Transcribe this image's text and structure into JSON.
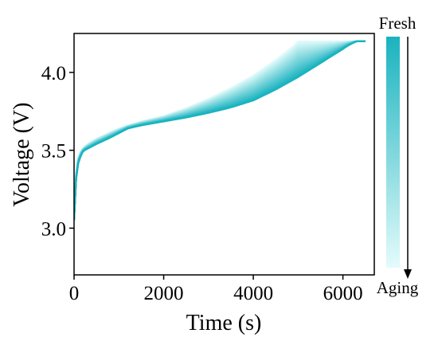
{
  "chart_data": {
    "type": "line",
    "xlabel": "Time (s)",
    "ylabel": "Voltage (V)",
    "xlim": [
      0,
      6700
    ],
    "ylim": [
      2.7,
      4.25
    ],
    "xticks": [
      0,
      2000,
      4000,
      6000
    ],
    "yticks": [
      3.0,
      3.5,
      4.0
    ],
    "xtick_labels": [
      "0",
      "2000",
      "4000",
      "6000"
    ],
    "ytick_labels": [
      "3.0",
      "3.5",
      "4.0"
    ],
    "grid": false,
    "colorbar": {
      "top_label": "Fresh",
      "bottom_label": "Aging",
      "color_fresh": "#1ab3bf",
      "color_aged": "#e4fbfb",
      "arrow_direction": "down"
    },
    "series_family": {
      "count": 30,
      "note_visible": "curves shift from fresh (darkest) to aged (lightest)",
      "fresh_curve": {
        "x": [
          0,
          30,
          100,
          200,
          300,
          500,
          800,
          1000,
          1200,
          1500,
          2000,
          2500,
          3000,
          3500,
          4000,
          4500,
          5000,
          5500,
          6000,
          6100,
          6200,
          6300,
          6500
        ],
        "y": [
          3.05,
          3.28,
          3.43,
          3.495,
          3.51,
          3.54,
          3.58,
          3.61,
          3.64,
          3.66,
          3.685,
          3.71,
          3.74,
          3.775,
          3.82,
          3.89,
          3.97,
          4.06,
          4.15,
          4.17,
          4.185,
          4.2,
          4.2
        ]
      },
      "aged_curve": {
        "x": [
          0,
          30,
          100,
          200,
          300,
          500,
          800,
          1000,
          1200,
          1500,
          2000,
          2500,
          3000,
          3500,
          4000,
          4500,
          4900,
          5000,
          5200,
          6500
        ],
        "y": [
          3.1,
          3.32,
          3.47,
          3.515,
          3.54,
          3.575,
          3.615,
          3.64,
          3.66,
          3.685,
          3.72,
          3.77,
          3.83,
          3.9,
          3.98,
          4.08,
          4.17,
          4.2,
          4.2,
          4.2
        ]
      }
    }
  }
}
